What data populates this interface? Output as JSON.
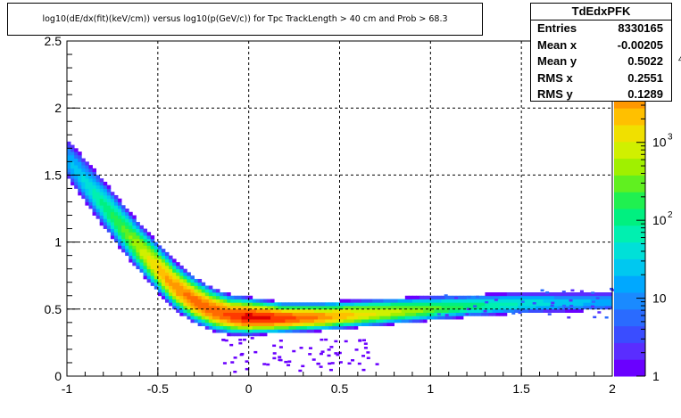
{
  "title": "log10(dE/dx(fit)(keV/cm)) versus log10(p(GeV/c)) for Tpc TrackLength > 40 cm and Prob > 68.3",
  "stats": {
    "name": "TdEdxPFK",
    "rows": [
      {
        "label": "Entries",
        "value": "8330165"
      },
      {
        "label": "Mean x",
        "value": "-0.00205"
      },
      {
        "label": "Mean y",
        "value": "0.5022"
      },
      {
        "label": "RMS x",
        "value": "0.2551"
      },
      {
        "label": "RMS y",
        "value": "0.1289"
      }
    ]
  },
  "colors": {
    "palette": [
      "#6a00ff",
      "#5a2dff",
      "#3a4dff",
      "#2a6bff",
      "#1a8aff",
      "#00a8ff",
      "#00c8f0",
      "#00e0d8",
      "#00f0b0",
      "#00f080",
      "#20f050",
      "#60f020",
      "#a0f000",
      "#d0f000",
      "#f0e000",
      "#ffc000",
      "#ff9800",
      "#ff6a00",
      "#ff3a00",
      "#e00000"
    ],
    "grid": "#000000"
  },
  "chart_data": {
    "type": "heatmap",
    "title": "log10(dE/dx(fit)(keV/cm)) versus log10(p(GeV/c)) for Tpc TrackLength > 40 cm and Prob > 68.3",
    "xlabel": "",
    "ylabel": "",
    "xlim": [
      -1,
      2
    ],
    "ylim": [
      0,
      2.5
    ],
    "x_ticks": [
      "-1",
      "-0.5",
      "0",
      "0.5",
      "1",
      "1.5",
      "2"
    ],
    "y_ticks": [
      "0",
      "0.5",
      "1",
      "1.5",
      "2",
      "2.5"
    ],
    "grid": true,
    "colorbar": {
      "scale": "log",
      "range": [
        1,
        20000
      ],
      "tick_labels": [
        {
          "base": "1",
          "exp": "",
          "value": 1
        },
        {
          "base": "10",
          "exp": "",
          "value": 10
        },
        {
          "base": "10",
          "exp": "2",
          "value": 100
        },
        {
          "base": "10",
          "exp": "3",
          "value": 1000
        },
        {
          "base": "",
          "exp": "4",
          "value": 10000
        }
      ]
    },
    "band_ridge": [
      {
        "x": -1.0,
        "y": 1.62
      },
      {
        "x": -0.9,
        "y": 1.45
      },
      {
        "x": -0.8,
        "y": 1.28
      },
      {
        "x": -0.7,
        "y": 1.11
      },
      {
        "x": -0.6,
        "y": 0.95
      },
      {
        "x": -0.5,
        "y": 0.8
      },
      {
        "x": -0.4,
        "y": 0.66
      },
      {
        "x": -0.3,
        "y": 0.56
      },
      {
        "x": -0.2,
        "y": 0.49
      },
      {
        "x": -0.1,
        "y": 0.45
      },
      {
        "x": 0.0,
        "y": 0.44
      },
      {
        "x": 0.2,
        "y": 0.43
      },
      {
        "x": 0.4,
        "y": 0.44
      },
      {
        "x": 0.6,
        "y": 0.46
      },
      {
        "x": 0.8,
        "y": 0.48
      },
      {
        "x": 1.0,
        "y": 0.5
      },
      {
        "x": 1.2,
        "y": 0.52
      },
      {
        "x": 1.4,
        "y": 0.535
      },
      {
        "x": 1.6,
        "y": 0.545
      },
      {
        "x": 1.8,
        "y": 0.55
      },
      {
        "x": 2.0,
        "y": 0.555
      }
    ],
    "band_density": [
      {
        "x": -1.0,
        "log10_counts": 1.2
      },
      {
        "x": -0.8,
        "log10_counts": 2.0
      },
      {
        "x": -0.6,
        "log10_counts": 2.8
      },
      {
        "x": -0.45,
        "log10_counts": 3.5
      },
      {
        "x": -0.3,
        "log10_counts": 3.8
      },
      {
        "x": -0.1,
        "log10_counts": 3.9
      },
      {
        "x": 0.0,
        "log10_counts": 4.2
      },
      {
        "x": 0.2,
        "log10_counts": 4.0
      },
      {
        "x": 0.4,
        "log10_counts": 3.6
      },
      {
        "x": 0.6,
        "log10_counts": 3.2
      },
      {
        "x": 0.9,
        "log10_counts": 2.7
      },
      {
        "x": 1.2,
        "log10_counts": 2.1
      },
      {
        "x": 1.5,
        "log10_counts": 1.7
      },
      {
        "x": 1.8,
        "log10_counts": 1.4
      },
      {
        "x": 2.0,
        "log10_counts": 1.2
      }
    ]
  }
}
